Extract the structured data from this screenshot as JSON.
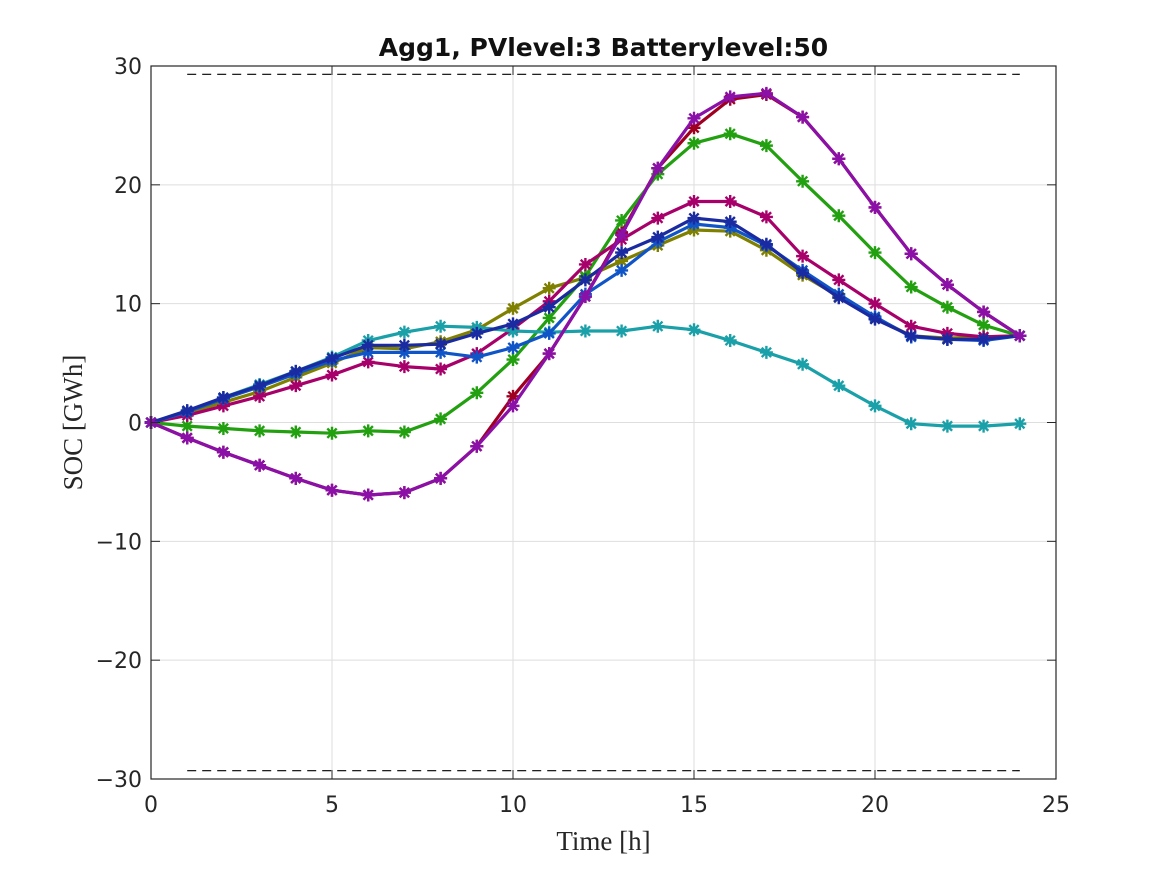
{
  "chart_data": {
    "type": "line",
    "title": "Agg1, PVlevel:3 Batterylevel:50",
    "xlabel": "Time [h]",
    "ylabel": "SOC [GWh]",
    "xlim": [
      0,
      25
    ],
    "ylim": [
      -30,
      30
    ],
    "xticks": [
      0,
      5,
      10,
      15,
      20,
      25
    ],
    "yticks": [
      -30,
      -20,
      -10,
      0,
      10,
      20,
      30
    ],
    "xtick_labels": [
      "0",
      "5",
      "10",
      "15",
      "20",
      "25"
    ],
    "ytick_labels": [
      "−30",
      "−20",
      "−10",
      "0",
      "10",
      "20",
      "30"
    ],
    "grid": true,
    "bounds": {
      "x": [
        1,
        24
      ],
      "upper": 29.3,
      "lower": -29.3,
      "color": "#000000",
      "style": "dashed"
    },
    "x": [
      0,
      1,
      2,
      3,
      4,
      5,
      6,
      7,
      8,
      9,
      10,
      11,
      12,
      13,
      14,
      15,
      16,
      17,
      18,
      19,
      20,
      21,
      22,
      23,
      24
    ],
    "series": [
      {
        "color": "#808000",
        "values": [
          0,
          0.8,
          1.7,
          2.6,
          3.8,
          5.0,
          6.3,
          6.2,
          6.8,
          7.8,
          9.6,
          11.3,
          12.2,
          13.6,
          14.9,
          16.2,
          16.1,
          14.5,
          12.4,
          10.6,
          8.8,
          7.3,
          7.1,
          7.2,
          7.3
        ]
      },
      {
        "color": "#a00020",
        "values": [
          0,
          -1.3,
          -2.5,
          -3.6,
          -4.7,
          -5.7,
          -6.1,
          -5.9,
          -4.7,
          -2.0,
          2.2,
          5.8,
          10.6,
          16.0,
          21.4,
          24.8,
          27.2,
          27.6,
          25.7,
          22.2,
          18.1,
          14.2,
          11.6,
          9.3,
          7.3
        ]
      },
      {
        "color": "#22a010",
        "values": [
          0,
          -0.3,
          -0.5,
          -0.7,
          -0.8,
          -0.9,
          -0.7,
          -0.8,
          0.3,
          2.5,
          5.3,
          8.8,
          12.3,
          17.0,
          20.9,
          23.5,
          24.3,
          23.3,
          20.3,
          17.4,
          14.3,
          11.4,
          9.7,
          8.2,
          7.3
        ]
      },
      {
        "color": "#a8006a",
        "values": [
          0,
          0.6,
          1.4,
          2.2,
          3.1,
          4.0,
          5.1,
          4.7,
          4.5,
          5.8,
          7.9,
          10.2,
          13.3,
          15.4,
          17.2,
          18.6,
          18.6,
          17.3,
          14.0,
          12.0,
          10.0,
          8.1,
          7.5,
          7.2,
          7.3
        ]
      },
      {
        "color": "#1aa0a8",
        "values": [
          0,
          0.9,
          2.1,
          3.2,
          4.3,
          5.5,
          6.9,
          7.6,
          8.1,
          8.0,
          7.7,
          7.6,
          7.7,
          7.7,
          8.1,
          7.8,
          6.9,
          5.9,
          4.9,
          3.1,
          1.4,
          -0.1,
          -0.3,
          -0.3,
          -0.1
        ]
      },
      {
        "color": "#1055c8",
        "values": [
          0,
          0.9,
          2.0,
          3.0,
          4.1,
          5.2,
          5.9,
          5.9,
          5.9,
          5.5,
          6.3,
          7.5,
          10.8,
          12.8,
          15.2,
          16.7,
          16.4,
          14.9,
          12.8,
          10.8,
          8.9,
          7.2,
          7.0,
          6.9,
          7.3
        ]
      },
      {
        "color": "#1a2aa0",
        "values": [
          0,
          1.0,
          2.1,
          3.1,
          4.3,
          5.4,
          6.5,
          6.5,
          6.6,
          7.5,
          8.3,
          9.7,
          12.0,
          14.3,
          15.6,
          17.2,
          16.9,
          15.0,
          12.6,
          10.5,
          8.7,
          7.3,
          7.0,
          7.0,
          7.3
        ]
      },
      {
        "color": "#8a10a8",
        "values": [
          0,
          -1.3,
          -2.5,
          -3.6,
          -4.7,
          -5.7,
          -6.1,
          -5.9,
          -4.7,
          -2.0,
          1.4,
          5.8,
          10.6,
          15.8,
          21.4,
          25.6,
          27.4,
          27.7,
          25.7,
          22.2,
          18.1,
          14.2,
          11.6,
          9.3,
          7.3
        ]
      }
    ]
  }
}
